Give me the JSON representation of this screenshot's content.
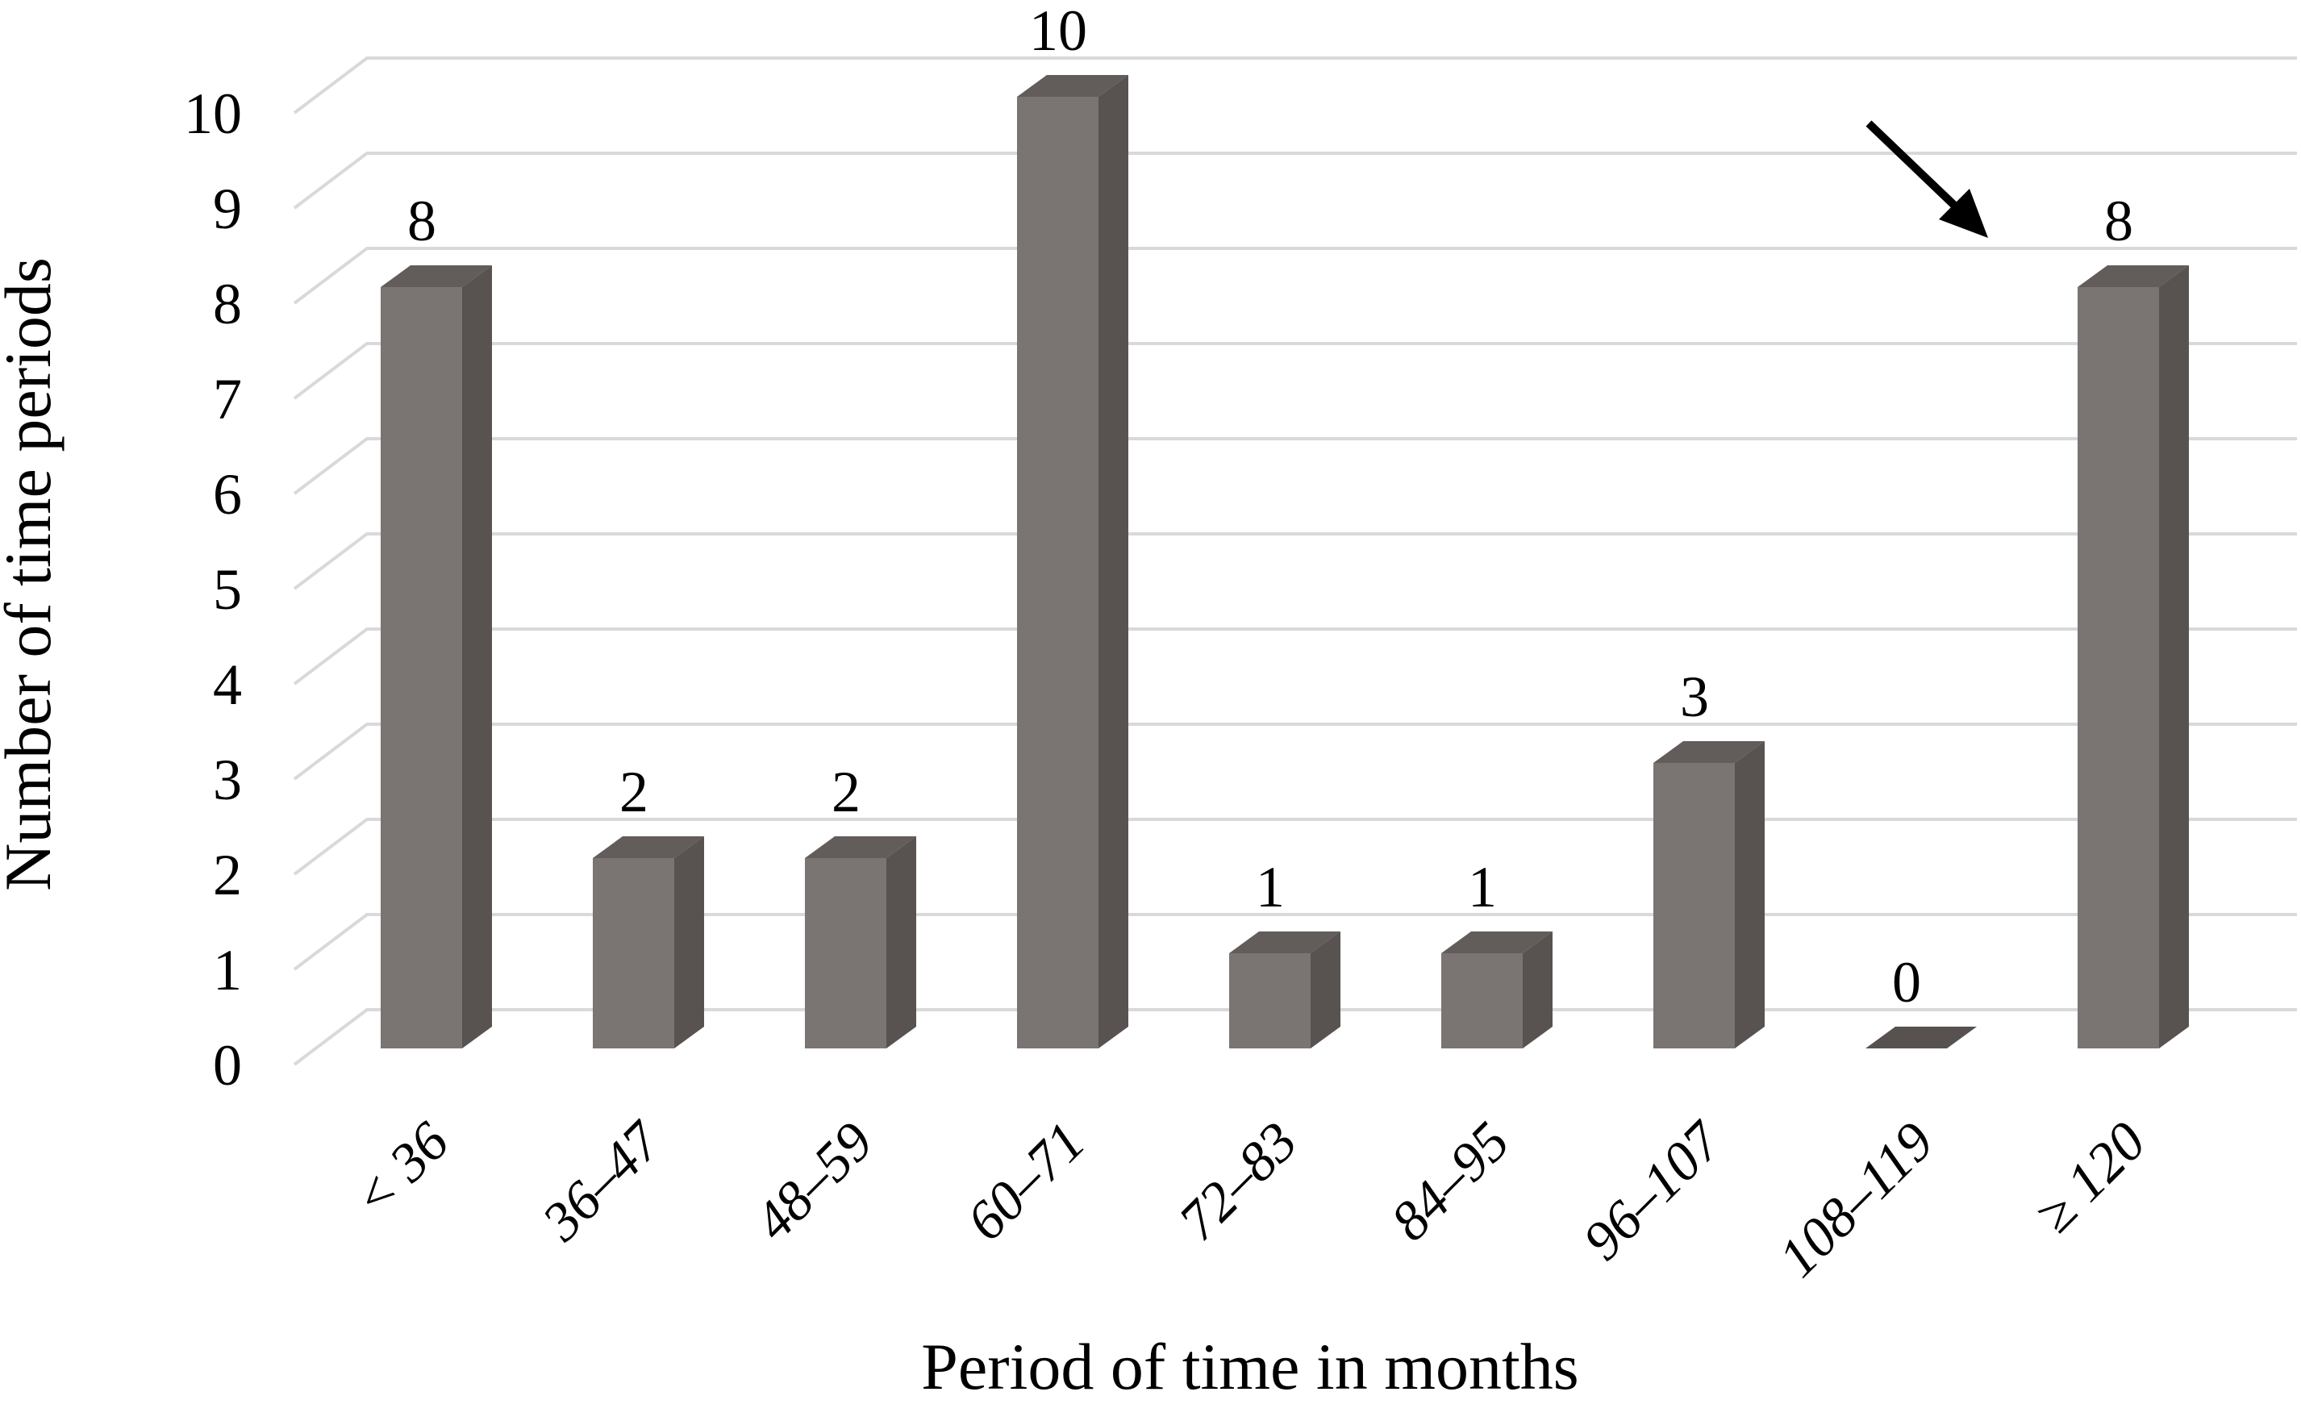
{
  "figure": {
    "background": "#ffffff",
    "chart_data": {
      "type": "bar",
      "style": "3d-column",
      "title": "",
      "xlabel": "Period of time in months",
      "ylabel": "Number of time periods",
      "categories": [
        "< 36",
        "36–47",
        "48–59",
        "60–71",
        "72–83",
        "84–95",
        "96–107",
        "108–119",
        "≥ 120"
      ],
      "values": [
        8,
        2,
        2,
        10,
        1,
        1,
        3,
        0,
        8
      ],
      "data_labels": [
        "8",
        "2",
        "2",
        "10",
        "1",
        "1",
        "3",
        "0",
        "8"
      ],
      "ylim": [
        0,
        10
      ],
      "yticks": [
        "0",
        "1",
        "2",
        "3",
        "4",
        "5",
        "6",
        "7",
        "8",
        "9",
        "10"
      ],
      "grid": true,
      "legend": false,
      "annotation": {
        "type": "arrow",
        "points_to_category": "≥ 120",
        "direction": "down-right"
      }
    },
    "colors": {
      "bar_front": "#7a7473",
      "bar_side": "#585250",
      "bar_top": "#625c5a",
      "bar_flat_zero": "#575250",
      "gridline": "#d9d9d9",
      "text": "#000000",
      "arrow": "#000000"
    }
  }
}
